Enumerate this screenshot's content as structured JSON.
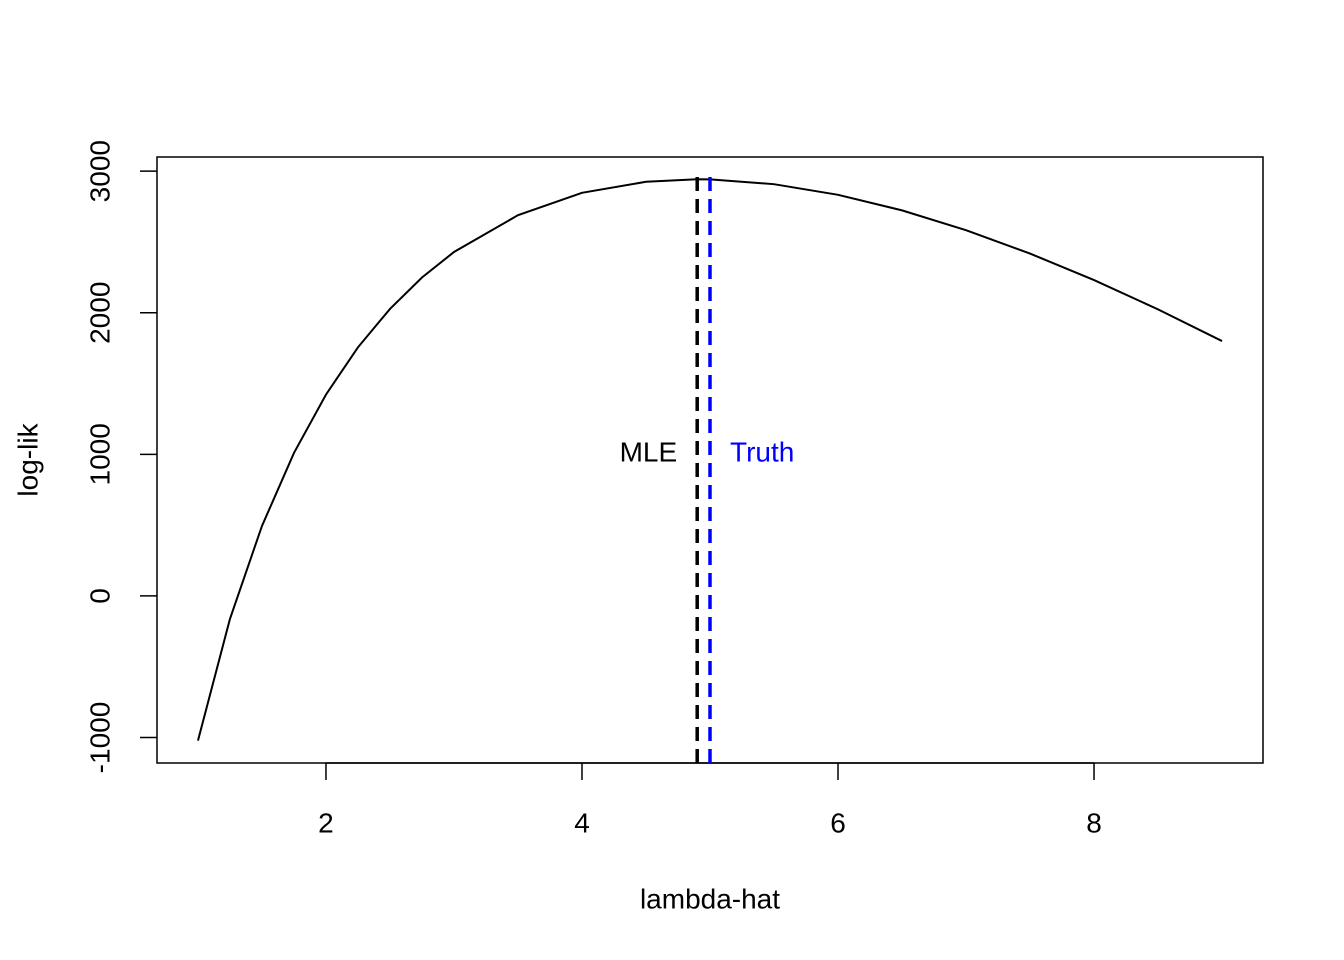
{
  "chart_data": {
    "type": "line",
    "xlabel": "lambda-hat",
    "ylabel": "log-lik",
    "x": [
      1,
      1.25,
      1.5,
      1.75,
      2,
      2.25,
      2.5,
      2.75,
      3,
      3.5,
      4,
      4.5,
      4.9,
      5,
      5.5,
      6,
      6.5,
      7,
      7.5,
      8,
      8.5,
      9
    ],
    "series": [
      {
        "color": "#000000",
        "values": [
          -1022,
          -162,
          494,
          1010,
          1422,
          1756,
          2027,
          2249,
          2429,
          2689,
          2847,
          2925,
          2943,
          2942,
          2908,
          2833,
          2723,
          2583,
          2418,
          2231,
          2024,
          1800
        ]
      }
    ],
    "xlim": [
      0.68,
      9.32
    ],
    "ylim": [
      -1180,
      3100
    ],
    "xticks": [
      2,
      4,
      6,
      8
    ],
    "yticks": [
      -1000,
      0,
      1000,
      2000,
      3000
    ],
    "vlines": [
      {
        "x": 4.9,
        "top": 3000,
        "label": "MLE",
        "label_y": 1000,
        "label_side": "left",
        "color": "#000000"
      },
      {
        "x": 5,
        "top": 3000,
        "label": "Truth",
        "label_y": 1000,
        "label_side": "right",
        "color": "#0000ff"
      }
    ]
  }
}
